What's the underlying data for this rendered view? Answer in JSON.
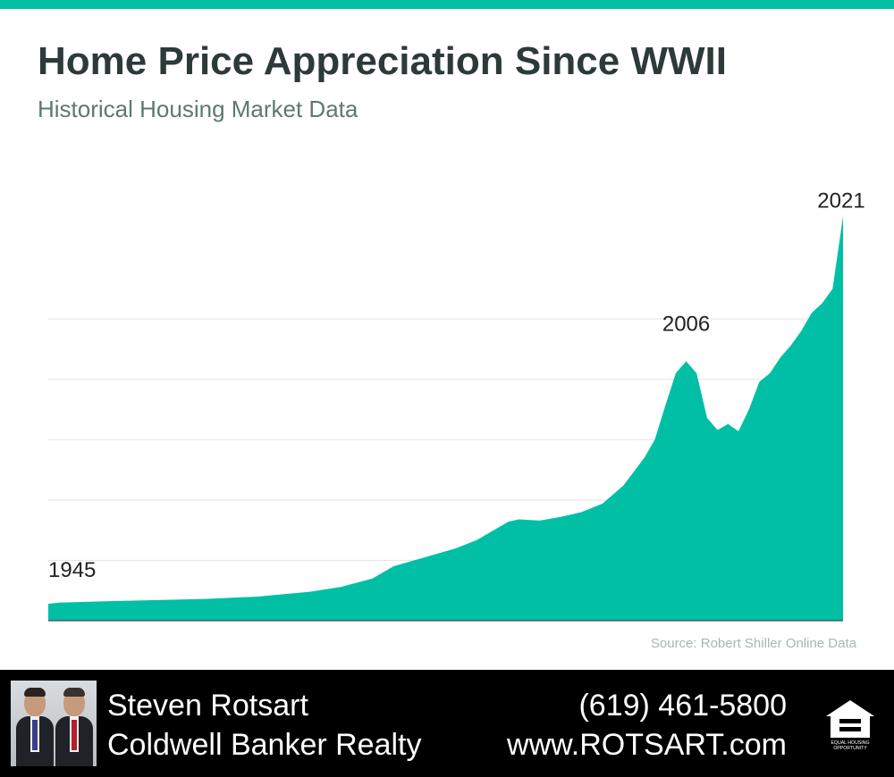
{
  "colors": {
    "accent": "#00BFA5",
    "title": "#2E3A3A",
    "subtitle": "#5B7A6F",
    "grid": "#E3E3E3",
    "footer_bg": "#000000",
    "footer_text": "#FFFFFF"
  },
  "header": {
    "title": "Home Price Appreciation Since WWII",
    "subtitle": "Historical Housing Market Data"
  },
  "chart_data": {
    "type": "area",
    "title": "Home Price Appreciation Since WWII",
    "subtitle": "Historical Housing Market Data",
    "x": [
      1945,
      1946,
      1950,
      1955,
      1960,
      1965,
      1970,
      1973,
      1976,
      1978,
      1980,
      1982,
      1984,
      1986,
      1989,
      1990,
      1992,
      1994,
      1996,
      1998,
      2000,
      2002,
      2003,
      2004,
      2005,
      2006,
      2007,
      2008,
      2009,
      2010,
      2011,
      2012,
      2013,
      2014,
      2015,
      2016,
      2017,
      2018,
      2019,
      2020,
      2021
    ],
    "y": [
      14,
      15,
      16,
      17,
      18,
      20,
      24,
      28,
      35,
      45,
      50,
      55,
      60,
      67,
      82,
      84,
      83,
      86,
      90,
      97,
      112,
      135,
      150,
      178,
      205,
      215,
      205,
      168,
      158,
      163,
      157,
      175,
      198,
      205,
      218,
      228,
      240,
      255,
      263,
      275,
      335
    ],
    "annotations": [
      {
        "label": "1945",
        "x": 1945
      },
      {
        "label": "2006",
        "x": 2006
      },
      {
        "label": "2021",
        "x": 2021
      }
    ],
    "xlim": [
      1945,
      2021
    ],
    "ylim": [
      0,
      350
    ],
    "grid": "horizontal",
    "legend": "none",
    "source": "Source: Robert Shiller Online Data"
  },
  "footer": {
    "name": "Steven Rotsart",
    "company": "Coldwell Banker Realty",
    "phone": "(619) 461-5800",
    "website": "www.ROTSART.com",
    "eho_line1": "EQUAL HOUSING",
    "eho_line2": "OPPORTUNITY",
    "photo_icon": "agent-photo",
    "logo_icon": "equal-housing-opportunity-icon"
  }
}
